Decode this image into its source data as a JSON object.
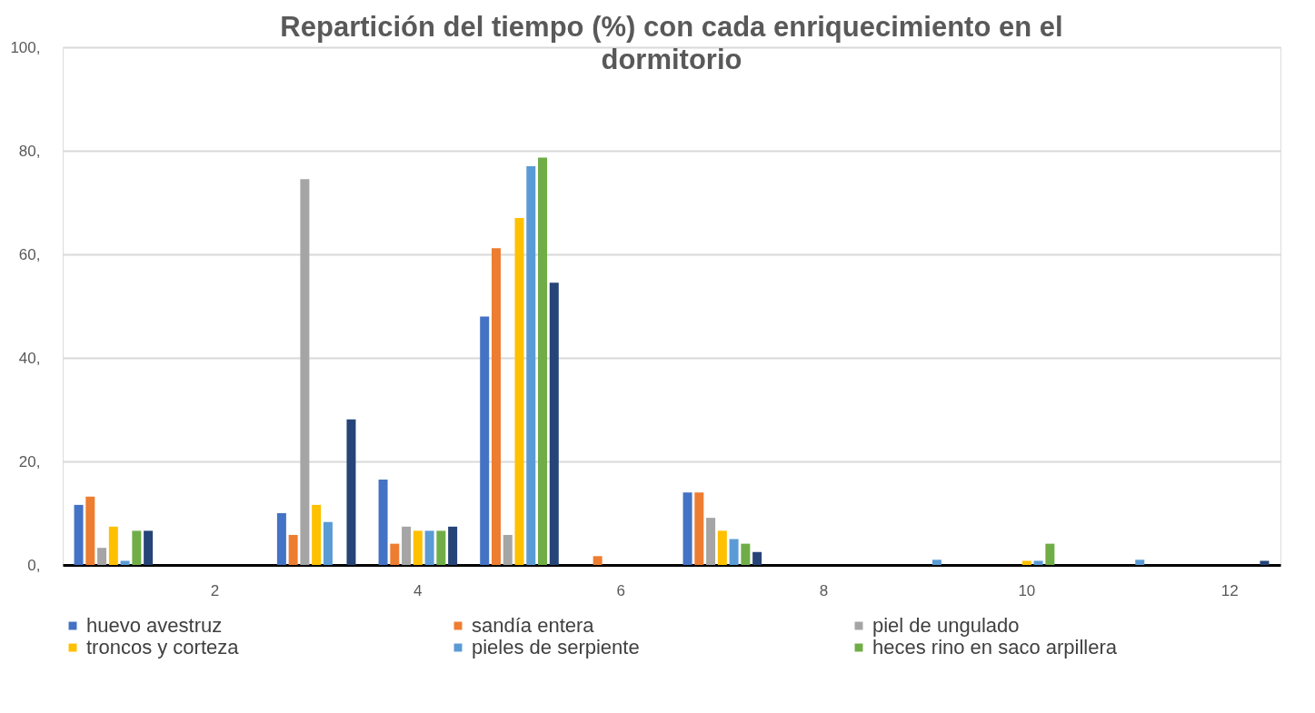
{
  "chart_data": {
    "type": "bar",
    "title": "Repartición del tiempo (%) con cada enriquecimiento en el dormitorio",
    "categories": [
      null,
      "2",
      null,
      "4",
      null,
      "6",
      null,
      "8",
      null,
      "10",
      null,
      "12"
    ],
    "series": [
      {
        "name": "huevo avestruz",
        "color": "#4472c4",
        "values": [
          11.6,
          0,
          10,
          16.5,
          48,
          0,
          14,
          0,
          0,
          0,
          0,
          0
        ]
      },
      {
        "name": "sandía entera",
        "color": "#ed7d31",
        "values": [
          13.2,
          0,
          5.8,
          4.1,
          61.2,
          1.7,
          14,
          0,
          0,
          0,
          0,
          0
        ]
      },
      {
        "name": "piel de ungulado",
        "color": "#a5a5a5",
        "values": [
          3.3,
          0,
          74.5,
          7.4,
          5.8,
          0,
          9.1,
          0,
          0,
          0,
          0,
          0
        ]
      },
      {
        "name": "troncos y corteza",
        "color": "#ffc000",
        "values": [
          7.4,
          0,
          11.6,
          6.6,
          67,
          0,
          6.6,
          0,
          0,
          0.8,
          0,
          0
        ]
      },
      {
        "name": "pieles de serpiente",
        "color": "#5b9bd5",
        "values": [
          0.8,
          0,
          8.3,
          6.6,
          77,
          0,
          5,
          0,
          1,
          0.8,
          1,
          0
        ]
      },
      {
        "name": "heces rino en saco arpillera",
        "color": "#70ad47",
        "values": [
          6.6,
          0,
          0,
          6.6,
          78.7,
          0,
          4.1,
          0,
          0,
          4.1,
          0,
          0
        ]
      },
      {
        "color": "#264478",
        "values": [
          6.6,
          0,
          28.1,
          7.4,
          54.5,
          0,
          2.5,
          0,
          0,
          0,
          0,
          0.8
        ]
      }
    ],
    "ylim": [
      0,
      100
    ],
    "yticks": [
      {
        "value": 0,
        "label": "0,"
      },
      {
        "value": 20,
        "label": "20,"
      },
      {
        "value": 40,
        "label": "40,"
      },
      {
        "value": 60,
        "label": "60,"
      },
      {
        "value": 80,
        "label": "80,"
      },
      {
        "value": 100,
        "label": "100,"
      }
    ],
    "grid": "y",
    "legend": "bottom"
  }
}
